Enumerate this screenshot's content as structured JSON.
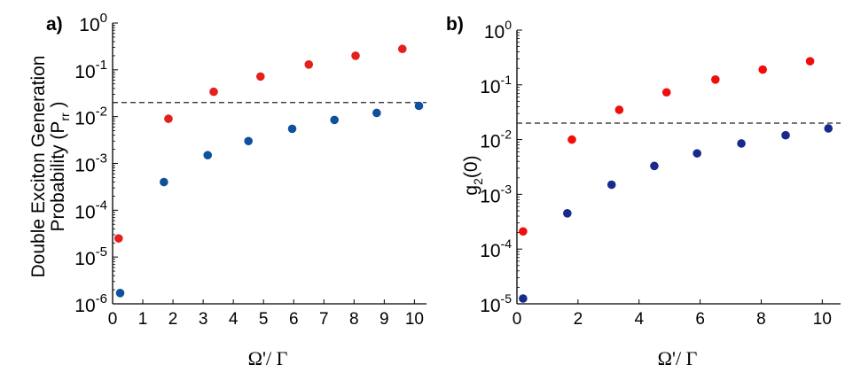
{
  "chart_data": [
    {
      "type": "scatter",
      "panel_label": "a)",
      "title": "",
      "xlabel": "Ω'/ Γ",
      "ylabel_lines": [
        "Double Exciton Generation",
        "Probability (P"
      ],
      "ylabel_subscript": "rr",
      "ylabel_suffix": " )",
      "xscale": "linear",
      "yscale": "log",
      "xlim": [
        0,
        10.4
      ],
      "ylim_exp": [
        -6,
        0
      ],
      "xticks": [
        0,
        1,
        2,
        3,
        4,
        5,
        6,
        7,
        8,
        9,
        10
      ],
      "xtick_labels": [
        "0",
        "1",
        "2",
        "3",
        "4",
        "5",
        "6",
        "7",
        "8",
        "9",
        "10"
      ],
      "yticks_exp": [
        -6,
        -5,
        -4,
        -3,
        -2,
        -1,
        0
      ],
      "ytick_base": "10",
      "ytick_exps": [
        "-6",
        "-5",
        "-4",
        "-3",
        "-2",
        "-1",
        "0"
      ],
      "threshold": 0.02,
      "series": [
        {
          "name": "red",
          "color": "#e3201b",
          "x": [
            0.2,
            1.85,
            3.35,
            4.9,
            6.5,
            8.05,
            9.6
          ],
          "y": [
            2.5e-05,
            0.009,
            0.034,
            0.072,
            0.13,
            0.2,
            0.28
          ]
        },
        {
          "name": "blue",
          "color": "#10519c",
          "x": [
            0.25,
            1.7,
            3.15,
            4.5,
            5.95,
            7.35,
            8.75,
            10.15
          ],
          "y": [
            1.7e-06,
            0.0004,
            0.0015,
            0.003,
            0.0055,
            0.0085,
            0.012,
            0.017
          ]
        }
      ]
    },
    {
      "type": "scatter",
      "panel_label": "b)",
      "title": "",
      "xlabel": "Ω'/ Γ",
      "ylabel_main": "g",
      "ylabel_subscript": "2",
      "ylabel_suffix": "(0)",
      "xscale": "linear",
      "yscale": "log",
      "xlim": [
        0,
        10.6
      ],
      "ylim_exp": [
        -5,
        0
      ],
      "xticks": [
        0,
        2,
        4,
        6,
        8,
        10
      ],
      "xtick_labels": [
        "0",
        "2",
        "4",
        "6",
        "8",
        "10"
      ],
      "yticks_exp": [
        -5,
        -4,
        -3,
        -2,
        -1,
        0
      ],
      "ytick_base": "10",
      "ytick_exps": [
        "-5",
        "-4",
        "-3",
        "-2",
        "-1",
        "0"
      ],
      "threshold": 0.02,
      "series": [
        {
          "name": "red",
          "color": "#f20d0d",
          "x": [
            0.2,
            1.8,
            3.35,
            4.9,
            6.5,
            8.05,
            9.6
          ],
          "y": [
            0.00021,
            0.01,
            0.035,
            0.073,
            0.125,
            0.19,
            0.27
          ]
        },
        {
          "name": "blue",
          "color": "#1a2a8c",
          "x": [
            0.2,
            1.65,
            3.1,
            4.5,
            5.9,
            7.35,
            8.8,
            10.2
          ],
          "y": [
            1.25e-05,
            0.00045,
            0.0015,
            0.0033,
            0.0056,
            0.0085,
            0.012,
            0.016
          ]
        }
      ]
    }
  ]
}
